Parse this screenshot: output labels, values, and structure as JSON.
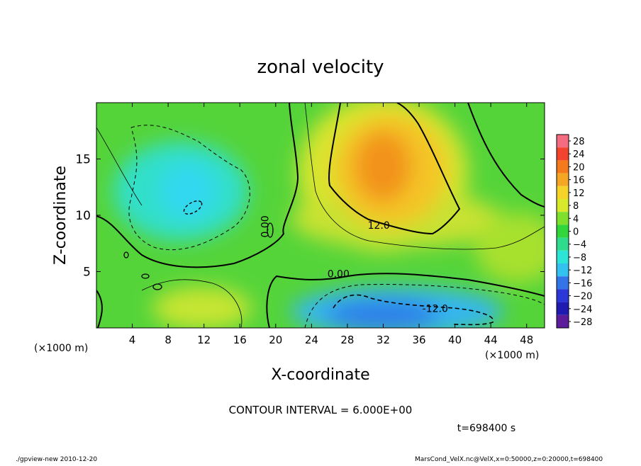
{
  "chart_data": {
    "type": "heatmap",
    "title": "zonal velocity",
    "xlabel": "X-coordinate",
    "ylabel": "Z-coordinate",
    "x_unit_label": "(×1000 m)",
    "y_unit_label": "(×1000 m)",
    "xlim": [
      0,
      50
    ],
    "ylim": [
      0,
      20
    ],
    "x_ticks": [
      "4",
      "8",
      "12",
      "16",
      "20",
      "24",
      "28",
      "32",
      "36",
      "40",
      "44",
      "48"
    ],
    "y_ticks": [
      "5",
      "10",
      "15"
    ],
    "colorbar_ticks": [
      "28",
      "24",
      "20",
      "16",
      "12",
      "8",
      "4",
      "0",
      "−4",
      "−8",
      "−12",
      "−16",
      "−20",
      "−24",
      "−28"
    ],
    "colorbar_range": [
      -30,
      30
    ],
    "contour_labels": [
      {
        "text": "12.0",
        "x": 31.5,
        "z": 8.8
      },
      {
        "text": "0.00",
        "x": 27,
        "z": 4.5
      },
      {
        "text": "-12.0",
        "x": 37.8,
        "z": 1.4
      },
      {
        "text": "0.00",
        "x": 19.2,
        "z": 9
      }
    ],
    "field_features": [
      {
        "kind": "max",
        "x": 32,
        "z": 14,
        "value": 18
      },
      {
        "kind": "min",
        "x": 35,
        "z": 1.2,
        "value": -15
      },
      {
        "kind": "min",
        "x": 11,
        "z": 12,
        "value": -10
      },
      {
        "kind": "max",
        "x": 12,
        "z": 1.5,
        "value": 8
      },
      {
        "kind": "max",
        "x": 45,
        "z": 6,
        "value": 6
      }
    ],
    "contour_interval_text": "CONTOUR INTERVAL = 6.000E+00",
    "time_text": "t=698400 s"
  },
  "footer": {
    "left": "./gpview-new  2010-12-20",
    "right": "MarsCond_VelX.nc@VelX,x=0:50000,z=0:20000,t=698400"
  },
  "colors": {
    "frame": "#000000",
    "colorbar_bands": [
      "#f56b7f",
      "#f2432e",
      "#f57a1c",
      "#f5a623",
      "#f5d328",
      "#d8e82a",
      "#7ee02c",
      "#31d63b",
      "#2fdc8c",
      "#2ce5d6",
      "#33c2f0",
      "#3574e8",
      "#2c37d9",
      "#1f1ab0",
      "#5d1c9a"
    ]
  }
}
